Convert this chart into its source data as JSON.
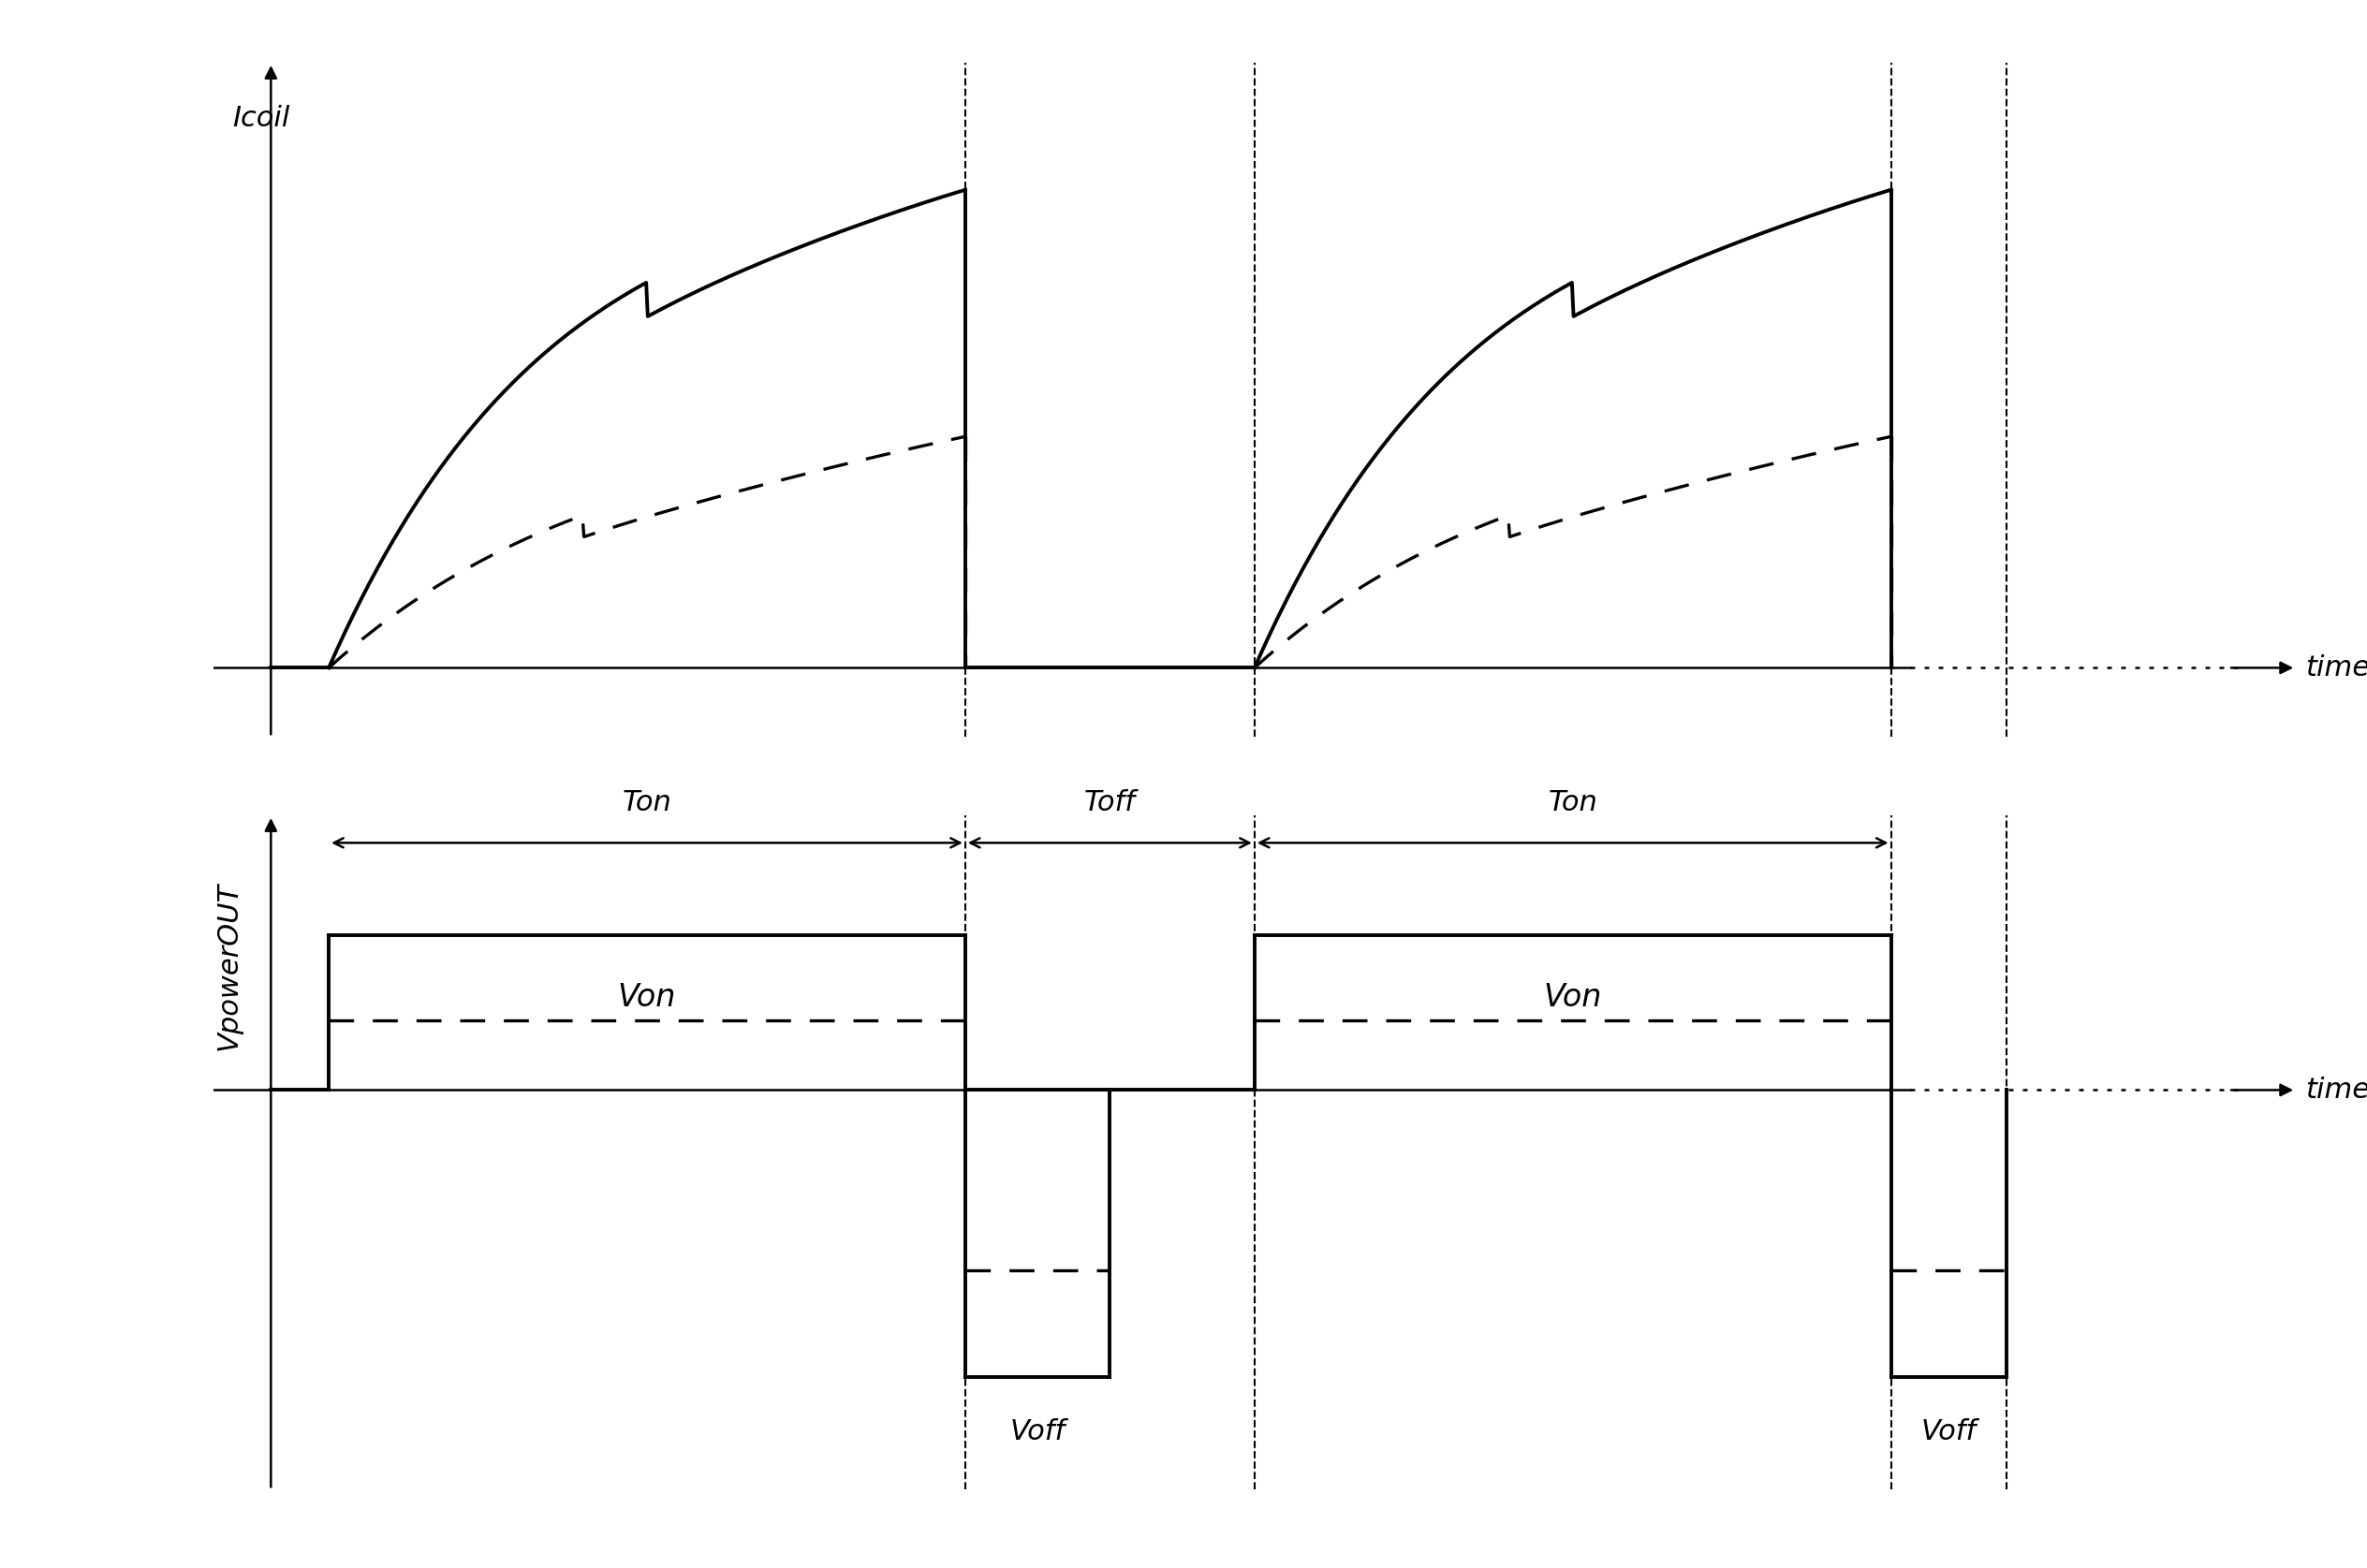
{
  "bg_color": "#ffffff",
  "line_color": "#000000",
  "top_panel": {
    "ylabel": "Icoil",
    "xlabel": "time",
    "ylim": [
      -0.12,
      1.05
    ],
    "xlim": [
      -0.3,
      10.5
    ]
  },
  "bottom_panel": {
    "ylabel": "VpowerOUT",
    "xlabel": "time",
    "ylim": [
      -1.6,
      1.1
    ],
    "xlim": [
      -0.3,
      10.5
    ]
  },
  "Ton1_start": 0.3,
  "Ton1_end": 3.6,
  "Toff_start": 3.6,
  "Toff_end": 5.1,
  "Ton2_start": 5.1,
  "Ton2_end": 8.4,
  "Tend": 9.0,
  "Von_level": 0.62,
  "Vbemf_level": 0.28,
  "Voff_level": -1.15,
  "Voff_bemf_level": -0.72,
  "Icoil_peak": 0.88,
  "Idash_peak": 0.45,
  "Voff_x1_start": 3.6,
  "Voff_x1_end": 4.35,
  "Voff_x2_start": 8.4,
  "Voff_x2_end": 9.0,
  "axis_x_start": 0.0,
  "axis_y_zero": 0.0
}
